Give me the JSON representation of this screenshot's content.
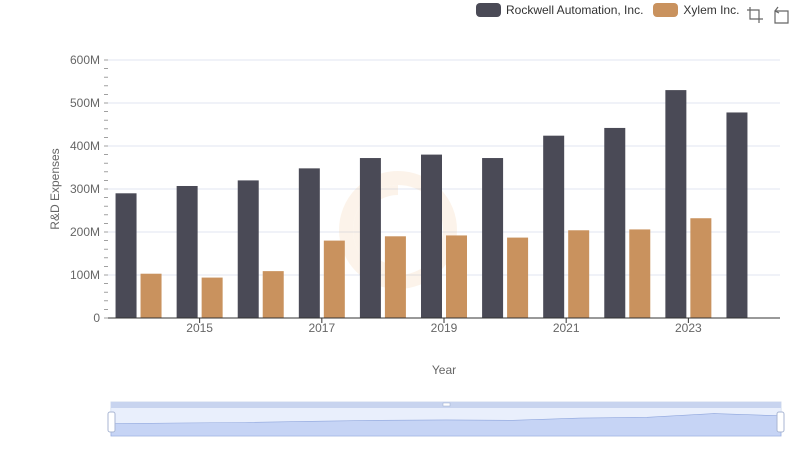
{
  "legend": {
    "items": [
      {
        "label": "Rockwell Automation, Inc.",
        "color": "#4a4a56"
      },
      {
        "label": "Xylem Inc.",
        "color": "#c9925e"
      }
    ]
  },
  "toolbox": {
    "icons": [
      "zoom-icon",
      "restore-icon"
    ]
  },
  "chart_data": {
    "type": "bar",
    "categories": [
      "2014",
      "2015",
      "2016",
      "2017",
      "2018",
      "2019",
      "2020",
      "2021",
      "2022",
      "2023",
      "2024"
    ],
    "x_tick_labels": [
      "2015",
      "2017",
      "2019",
      "2021",
      "2023"
    ],
    "y_tick_labels": [
      "0",
      "100M",
      "200M",
      "300M",
      "400M",
      "500M",
      "600M"
    ],
    "xlabel": "Year",
    "ylabel": "R&D Expenses",
    "ylim": [
      0,
      600000000
    ],
    "grid": true,
    "legend_position": "top-right",
    "series": [
      {
        "name": "Rockwell Automation, Inc.",
        "color": "#4a4a56",
        "values": [
          290000000,
          307000000,
          320000000,
          348000000,
          372000000,
          380000000,
          372000000,
          424000000,
          442000000,
          530000000,
          478000000
        ]
      },
      {
        "name": "Xylem Inc.",
        "color": "#c9925e",
        "values": [
          103000000,
          94000000,
          109000000,
          180000000,
          190000000,
          192000000,
          187000000,
          204000000,
          206000000,
          232000000,
          null
        ]
      }
    ]
  },
  "data_zoom": {
    "range_percent": [
      0,
      100
    ]
  }
}
